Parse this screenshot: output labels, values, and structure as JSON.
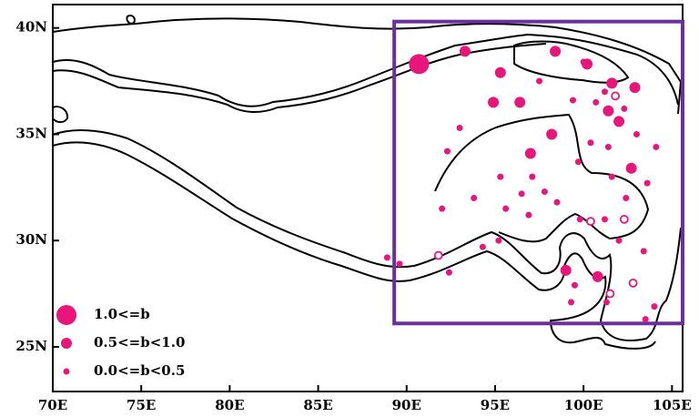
{
  "chart_data": {
    "type": "scatter",
    "xlim": [
      70,
      105.6
    ],
    "ylim": [
      22.9,
      41.1
    ],
    "xticks": [
      {
        "value": 70,
        "label": "70E"
      },
      {
        "value": 75,
        "label": "75E"
      },
      {
        "value": 80,
        "label": "80E"
      },
      {
        "value": 85,
        "label": "85E"
      },
      {
        "value": 90,
        "label": "90E"
      },
      {
        "value": 95,
        "label": "95E"
      },
      {
        "value": 100,
        "label": "100E"
      },
      {
        "value": 105,
        "label": "105E"
      }
    ],
    "yticks": [
      {
        "value": 25,
        "label": "25N"
      },
      {
        "value": 30,
        "label": "30N"
      },
      {
        "value": 35,
        "label": "35N"
      },
      {
        "value": 40,
        "label": "40N"
      }
    ],
    "box": {
      "xlim": [
        89.3,
        105.6
      ],
      "ylim": [
        26.1,
        40.3
      ],
      "color": "#6b2fa0"
    },
    "series": [
      {
        "name": "1.0<=b",
        "color": "#e8157a",
        "marker": "filled",
        "x": [
          90.7
        ],
        "y": [
          38.3
        ]
      },
      {
        "name": "0.5<=b<1.0",
        "color": "#e8157a",
        "marker": "filled",
        "x": [
          93.3,
          95.3,
          98.4,
          100.2,
          101.6,
          102.9,
          94.9,
          96.4,
          101.4,
          102.0,
          98.2,
          97.0,
          102.7,
          99.0,
          100.8
        ],
        "y": [
          38.9,
          37.9,
          38.9,
          38.3,
          37.4,
          37.2,
          36.5,
          36.5,
          36.1,
          35.6,
          35.0,
          34.1,
          33.4,
          28.6,
          28.3
        ]
      },
      {
        "name": "0.0<=b<0.5",
        "color": "#e8157a",
        "marker": "filled",
        "x": [
          100.0,
          97.5,
          99.4,
          100.7,
          101.2,
          102.3,
          93.0,
          103.0,
          104.1,
          92.3,
          100.4,
          101.4,
          99.7,
          97.1,
          95.3,
          101.6,
          103.6,
          97.8,
          96.5,
          93.8,
          95.6,
          98.5,
          102.4,
          92.0,
          96.9,
          99.8,
          101.2,
          102.0,
          94.3,
          95.2,
          103.4,
          88.9,
          89.6,
          92.4,
          99.5,
          101.3,
          99.3,
          104.0,
          103.5
        ],
        "y": [
          38.4,
          37.5,
          36.6,
          36.5,
          37.0,
          36.2,
          35.3,
          35.0,
          34.4,
          34.2,
          34.6,
          34.4,
          33.7,
          33.0,
          33.0,
          33.0,
          32.7,
          32.3,
          32.2,
          32.0,
          31.5,
          31.8,
          32.0,
          31.5,
          31.2,
          31.0,
          31.0,
          30.0,
          29.7,
          30.0,
          29.5,
          29.2,
          28.9,
          28.5,
          27.9,
          27.1,
          27.1,
          26.9,
          26.3
        ]
      },
      {
        "color": "#e8157a",
        "marker": "hollow",
        "x": [
          101.8,
          91.8,
          100.4,
          102.3,
          101.5,
          102.8
        ],
        "y": [
          36.8,
          29.3,
          30.9,
          31.0,
          27.5,
          28.0
        ]
      }
    ]
  }
}
